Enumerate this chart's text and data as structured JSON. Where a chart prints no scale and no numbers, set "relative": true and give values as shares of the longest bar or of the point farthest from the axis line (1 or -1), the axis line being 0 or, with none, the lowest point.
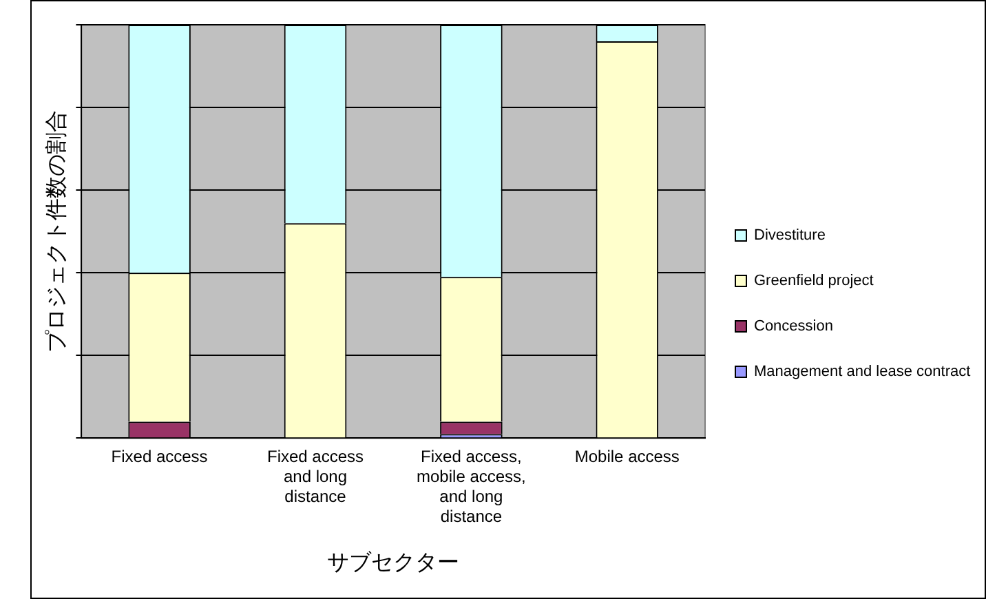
{
  "chart_data": {
    "type": "bar",
    "stacked": true,
    "relative": true,
    "xlabel": "サブセクター",
    "ylabel": "プロジェクト件数の割合",
    "categories": [
      "Fixed access",
      "Fixed access and long distance",
      "Fixed access, mobile access, and long distance",
      "Mobile access"
    ],
    "series": [
      {
        "name": "Management and lease contract",
        "color": "#9999ff",
        "values": [
          0,
          0,
          0.01,
          0
        ]
      },
      {
        "name": "Concession",
        "color": "#993366",
        "values": [
          0.04,
          0,
          0.03,
          0
        ]
      },
      {
        "name": "Greenfield project",
        "color": "#ffffcc",
        "values": [
          0.36,
          0.52,
          0.35,
          0.96
        ]
      },
      {
        "name": "Divestiture",
        "color": "#ccffff",
        "values": [
          0.6,
          0.48,
          0.61,
          0.04
        ]
      }
    ],
    "legend": "right",
    "grid": "y",
    "tick_labels": "x"
  }
}
